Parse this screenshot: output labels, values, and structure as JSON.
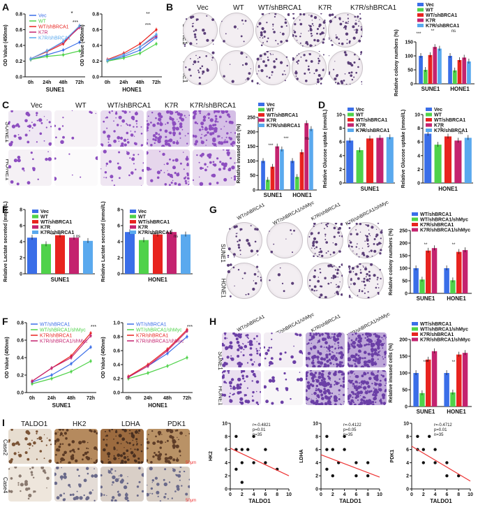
{
  "panels": {
    "A": {
      "letter": "A"
    },
    "B": {
      "letter": "B"
    },
    "C": {
      "letter": "C"
    },
    "D": {
      "letter": "D"
    },
    "E": {
      "letter": "E"
    },
    "F": {
      "letter": "F"
    },
    "G": {
      "letter": "G"
    },
    "H": {
      "letter": "H"
    },
    "I": {
      "letter": "I"
    }
  },
  "groups5": [
    "Vec",
    "WT",
    "WT/shBRCA1",
    "K7R",
    "K7R/shBRCA1"
  ],
  "groups4": [
    "WT/shBRCA1",
    "WT/shBRCA1/shMyc",
    "K7R/shBRCA1",
    "K7R/shBRCA1/shMyc"
  ],
  "groups4_short": [
    "WT/shBRCA1",
    "WT/shBRCA1/shMyc",
    "K7R/shBRCA1",
    "K7R/shBRCA1/shMyc"
  ],
  "cells": [
    "SUNE1",
    "HONE1"
  ],
  "colors": {
    "vec": "#3a6ee8",
    "wt": "#4fd24a",
    "wtsh": "#e8231f",
    "k7r": "#c4236f",
    "k7rsh": "#5aa9ee"
  },
  "sig": {
    "s1": "*",
    "s2": "**",
    "s3": "***",
    "ns": "ns"
  },
  "panelI": {
    "markers": [
      "TALDO1",
      "HK2",
      "LDHA",
      "PDK1"
    ],
    "cases": [
      "Case2",
      "Case4"
    ],
    "scale": "50μm"
  },
  "chart_data": [
    {
      "id": "A-SUNE1",
      "type": "line",
      "xlabel": "SUNE1",
      "ylabel": "OD Value (450nm)",
      "categories": [
        "0h",
        "24h",
        "48h",
        "72h"
      ],
      "ylim": [
        0,
        0.8
      ],
      "yticks": [
        "0.0",
        "0.2",
        "0.4",
        "0.6",
        "0.8"
      ],
      "series": [
        {
          "name": "Vec",
          "values": [
            0.22,
            0.28,
            0.34,
            0.44
          ]
        },
        {
          "name": "WT",
          "values": [
            0.22,
            0.26,
            0.28,
            0.33
          ]
        },
        {
          "name": "WT/shBRCA1",
          "values": [
            0.23,
            0.32,
            0.42,
            0.65
          ]
        },
        {
          "name": "K7R",
          "values": [
            0.23,
            0.33,
            0.44,
            0.63
          ]
        },
        {
          "name": "K7R/shBRCA1",
          "values": [
            0.23,
            0.33,
            0.45,
            0.65
          ]
        }
      ]
    },
    {
      "id": "A-HONE1",
      "type": "line",
      "xlabel": "HONE1",
      "ylabel": "OD Value (450nm)",
      "categories": [
        "0h",
        "24h",
        "48h",
        "72h"
      ],
      "ylim": [
        0,
        0.8
      ],
      "yticks": [
        "0.0",
        "0.2",
        "0.4",
        "0.6",
        "0.8"
      ],
      "series": [
        {
          "name": "Vec",
          "values": [
            0.2,
            0.26,
            0.34,
            0.5
          ]
        },
        {
          "name": "WT",
          "values": [
            0.2,
            0.24,
            0.3,
            0.42
          ]
        },
        {
          "name": "WT/shBRCA1",
          "values": [
            0.22,
            0.3,
            0.42,
            0.6
          ]
        },
        {
          "name": "K7R",
          "values": [
            0.21,
            0.28,
            0.38,
            0.52
          ]
        },
        {
          "name": "K7R/shBRCA1",
          "values": [
            0.21,
            0.28,
            0.38,
            0.54
          ]
        }
      ]
    },
    {
      "id": "B-bar",
      "type": "bar",
      "ylabel": "Relative colony numbers (%)",
      "categories": [
        "SUNE1",
        "HONE1"
      ],
      "ylim": [
        0,
        150
      ],
      "yticks": [
        "0",
        "50",
        "100",
        "150"
      ],
      "series": [
        {
          "name": "Vec",
          "values": [
            100,
            100
          ]
        },
        {
          "name": "WT",
          "values": [
            50,
            48
          ]
        },
        {
          "name": "WT/shBRCA1",
          "values": [
            103,
            85
          ]
        },
        {
          "name": "K7R",
          "values": [
            132,
            94
          ]
        },
        {
          "name": "K7R/shBRCA1",
          "values": [
            126,
            80
          ]
        }
      ]
    },
    {
      "id": "C-bar",
      "type": "bar",
      "ylabel": "Relative invased cells (%)",
      "categories": [
        "SUNE1",
        "HONE1"
      ],
      "ylim": [
        0,
        250
      ],
      "yticks": [
        "0",
        "50",
        "100",
        "150",
        "200",
        "250"
      ],
      "series": [
        {
          "name": "Vec",
          "values": [
            100,
            100
          ]
        },
        {
          "name": "WT",
          "values": [
            35,
            45
          ]
        },
        {
          "name": "WT/shBRCA1",
          "values": [
            80,
            130
          ]
        },
        {
          "name": "K7R",
          "values": [
            150,
            230
          ]
        },
        {
          "name": "K7R/shBRCA1",
          "values": [
            140,
            210
          ]
        }
      ]
    },
    {
      "id": "D-SUNE1",
      "type": "bar",
      "ylabel": "Relative Glucose uptake (mmol/L)",
      "xlabel": "SUNE1",
      "categories": [
        "Vec",
        "WT",
        "WT/shBRCA1",
        "K7R",
        "K7R/shBRCA1"
      ],
      "ylim": [
        0,
        10
      ],
      "yticks": [
        "0",
        "2",
        "4",
        "6",
        "8",
        "10"
      ],
      "values": [
        6.2,
        4.8,
        6.5,
        6.6,
        6.7
      ]
    },
    {
      "id": "D-HONE1",
      "type": "bar",
      "ylabel": "Relative Glucose uptake (mmol/L)",
      "xlabel": "HONE1",
      "categories": [
        "Vec",
        "WT",
        "WT/shBRCA1",
        "K7R",
        "K7R/shBRCA1"
      ],
      "ylim": [
        0,
        10
      ],
      "yticks": [
        "0",
        "2",
        "4",
        "6",
        "8",
        "10"
      ],
      "values": [
        7.2,
        5.6,
        6.8,
        6.2,
        6.6
      ]
    },
    {
      "id": "E-SUNE1",
      "type": "bar",
      "ylabel": "Relative Lactate secreted (mmol/L)",
      "xlabel": "SUNE1",
      "categories": [
        "Vec",
        "WT",
        "WT/shBRCA1",
        "K7R",
        "K7R/shBRCA1"
      ],
      "ylim": [
        0,
        8
      ],
      "yticks": [
        "0",
        "2",
        "4",
        "6",
        "8"
      ],
      "values": [
        4.5,
        3.7,
        4.8,
        4.5,
        4.1
      ]
    },
    {
      "id": "E-HONE1",
      "type": "bar",
      "ylabel": "Relative Lactate secreted (mmol/L)",
      "xlabel": "HONE1",
      "categories": [
        "Vec",
        "WT",
        "WT/shBRCA1",
        "K7R",
        "K7R/shBRCA1"
      ],
      "ylim": [
        0,
        8
      ],
      "yticks": [
        "0",
        "2",
        "4",
        "6",
        "8"
      ],
      "values": [
        5.2,
        4.2,
        4.9,
        5.2,
        4.9
      ]
    },
    {
      "id": "G-bar",
      "type": "bar",
      "ylabel": "Relative colony numbers (%)",
      "categories": [
        "SUNE1",
        "HONE1"
      ],
      "ylim": [
        0,
        250
      ],
      "yticks": [
        "0",
        "50",
        "100",
        "150",
        "200",
        "250"
      ],
      "series": [
        {
          "name": "WT/shBRCA1",
          "values": [
            100,
            100
          ]
        },
        {
          "name": "WT/shBRCA1/shMyc",
          "values": [
            55,
            52
          ]
        },
        {
          "name": "K7R/shBRCA1",
          "values": [
            170,
            165
          ]
        },
        {
          "name": "K7R/shBRCA1/shMyc",
          "values": [
            180,
            172
          ]
        }
      ]
    },
    {
      "id": "F-SUNE1",
      "type": "line",
      "xlabel": "SUNE1",
      "ylabel": "OD Value (450nm)",
      "categories": [
        "0h",
        "24h",
        "48h",
        "72h"
      ],
      "ylim": [
        0,
        0.8
      ],
      "yticks": [
        "0.0",
        "0.2",
        "0.4",
        "0.6",
        "0.8"
      ],
      "series": [
        {
          "name": "WT/shBRCA1",
          "values": [
            0.12,
            0.2,
            0.33,
            0.52
          ]
        },
        {
          "name": "WT/shBRCA1/shMyc",
          "values": [
            0.1,
            0.16,
            0.24,
            0.36
          ]
        },
        {
          "name": "K7R/shBRCA1",
          "values": [
            0.13,
            0.28,
            0.42,
            0.68
          ]
        },
        {
          "name": "K7R/shBRCA1/shMyc",
          "values": [
            0.13,
            0.28,
            0.4,
            0.65
          ]
        }
      ]
    },
    {
      "id": "F-HONE1",
      "type": "line",
      "xlabel": "HONE1",
      "ylabel": "OD Value (450nm)",
      "categories": [
        "0h",
        "24h",
        "48h",
        "72h"
      ],
      "ylim": [
        0,
        1.0
      ],
      "yticks": [
        "0.0",
        "0.2",
        "0.4",
        "0.6",
        "0.8",
        "1.0"
      ],
      "series": [
        {
          "name": "WT/shBRCA1",
          "values": [
            0.22,
            0.38,
            0.56,
            0.8
          ]
        },
        {
          "name": "WT/shBRCA1/shMyc",
          "values": [
            0.2,
            0.28,
            0.38,
            0.5
          ]
        },
        {
          "name": "K7R/shBRCA1",
          "values": [
            0.23,
            0.4,
            0.62,
            0.9
          ]
        },
        {
          "name": "K7R/shBRCA1/shMyc",
          "values": [
            0.22,
            0.38,
            0.6,
            0.88
          ]
        }
      ]
    },
    {
      "id": "H-bar",
      "type": "bar",
      "ylabel": "Relative invased cells (%)",
      "categories": [
        "SUNE1",
        "HONE1"
      ],
      "ylim": [
        0,
        200
      ],
      "yticks": [
        "0",
        "50",
        "100",
        "150",
        "200"
      ],
      "series": [
        {
          "name": "WT/shBRCA1",
          "values": [
            100,
            100
          ]
        },
        {
          "name": "WT/shBRCA1/shMyc",
          "values": [
            40,
            42
          ]
        },
        {
          "name": "K7R/shBRCA1",
          "values": [
            140,
            155
          ]
        },
        {
          "name": "K7R/shBRCA1/shMyc",
          "values": [
            165,
            160
          ]
        }
      ]
    },
    {
      "id": "I-HK2",
      "type": "scatter",
      "xlabel": "TALDO1",
      "ylabel": "HK2",
      "xlim": [
        0,
        10
      ],
      "ylim": [
        0,
        10
      ],
      "xticks": [
        "0",
        "2",
        "4",
        "6",
        "8",
        "10"
      ],
      "yticks": [
        "0",
        "2",
        "4",
        "6",
        "8",
        "10"
      ],
      "annotation": [
        "r=-0.4821",
        "p=0.01",
        "n=35"
      ],
      "x": [
        1,
        1,
        1,
        2,
        2,
        2,
        3,
        4,
        4,
        6,
        6,
        8
      ],
      "y": [
        8,
        6,
        3,
        6,
        4,
        1,
        6,
        8,
        4,
        4,
        6,
        3
      ],
      "fit": [
        [
          0,
          6.2
        ],
        [
          10,
          2
        ]
      ]
    },
    {
      "id": "I-LDHA",
      "type": "scatter",
      "xlabel": "TALDO1",
      "ylabel": "LDHA",
      "xlim": [
        0,
        10
      ],
      "ylim": [
        0,
        10
      ],
      "xticks": [
        "0",
        "2",
        "4",
        "6",
        "8",
        "10"
      ],
      "yticks": [
        "0",
        "2",
        "4",
        "6",
        "8",
        "10"
      ],
      "annotation": [
        "r=-0.4122",
        "p=0.05",
        "n=35"
      ],
      "x": [
        1,
        1,
        1,
        2,
        2,
        3,
        4,
        4,
        6,
        6,
        8,
        8
      ],
      "y": [
        8,
        6,
        3,
        6,
        2,
        4,
        6,
        8,
        4,
        2,
        4,
        2
      ],
      "fit": [
        [
          0,
          5.2
        ],
        [
          10,
          1.8
        ]
      ]
    },
    {
      "id": "I-PDK1",
      "type": "scatter",
      "xlabel": "TALDO1",
      "ylabel": "PDK1",
      "xlim": [
        0,
        10
      ],
      "ylim": [
        0,
        10
      ],
      "xticks": [
        "0",
        "2",
        "4",
        "6",
        "8",
        "10"
      ],
      "yticks": [
        "0",
        "2",
        "4",
        "6",
        "8",
        "10"
      ],
      "annotation": [
        "r=-0.4712",
        "p=0.01",
        "n=35"
      ],
      "x": [
        1,
        1,
        2,
        2,
        3,
        4,
        4,
        6,
        6,
        8
      ],
      "y": [
        8,
        6,
        4,
        6,
        8,
        6,
        4,
        4,
        2,
        2
      ],
      "fit": [
        [
          0,
          6.5
        ],
        [
          10,
          1.2
        ]
      ]
    }
  ]
}
